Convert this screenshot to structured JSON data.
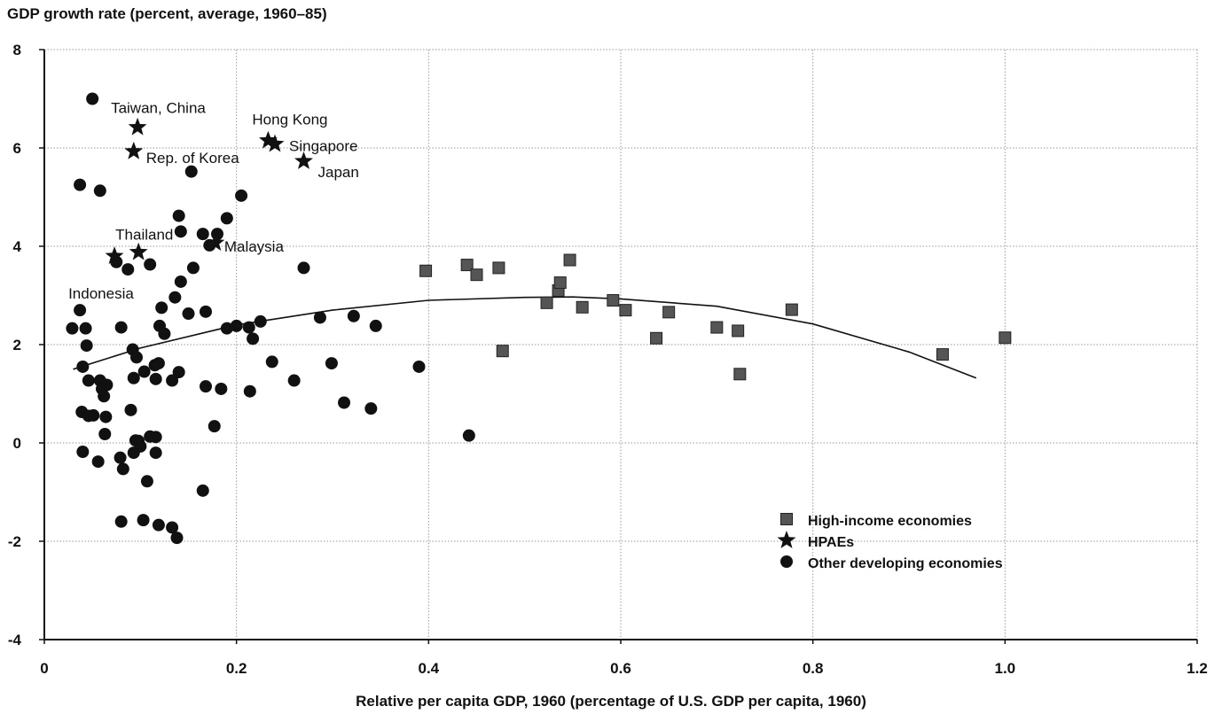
{
  "chart_data": {
    "type": "scatter",
    "title": "",
    "ylabel": "GDP growth rate (percent, average, 1960–85)",
    "xlabel": "Relative per capita GDP, 1960 (percentage of U.S. GDP per capita, 1960)",
    "xlim": [
      0,
      1.2
    ],
    "ylim": [
      -4,
      8
    ],
    "x_ticks": [
      "0",
      "0.2",
      "0.4",
      "0.6",
      "0.8",
      "1.0",
      "1.2"
    ],
    "y_ticks": [
      "-4",
      "-2",
      "0",
      "2",
      "4",
      "6",
      "8"
    ],
    "grid": true,
    "legend_position": "lower-right",
    "legend": [
      {
        "label": "High-income economies",
        "marker": "square"
      },
      {
        "label": "HPAEs",
        "marker": "star"
      },
      {
        "label": "Other developing economies",
        "marker": "circle"
      }
    ],
    "series": [
      {
        "name": "HPAEs",
        "marker": "star",
        "points": [
          {
            "x": 0.097,
            "y": 6.42,
            "label": "Taiwan, China"
          },
          {
            "x": 0.093,
            "y": 5.93,
            "label": "Rep. of Korea"
          },
          {
            "x": 0.233,
            "y": 6.15,
            "label": "Hong Kong"
          },
          {
            "x": 0.24,
            "y": 6.08,
            "label": "Singapore"
          },
          {
            "x": 0.27,
            "y": 5.73,
            "label": "Japan"
          },
          {
            "x": 0.098,
            "y": 3.88,
            "label": "Thailand"
          },
          {
            "x": 0.073,
            "y": 3.8,
            "label": "Indonesia"
          },
          {
            "x": 0.178,
            "y": 4.07,
            "label": "Malaysia"
          }
        ]
      },
      {
        "name": "High-income economies",
        "marker": "square",
        "points": [
          {
            "x": 0.397,
            "y": 3.5
          },
          {
            "x": 0.44,
            "y": 3.62
          },
          {
            "x": 0.45,
            "y": 3.42
          },
          {
            "x": 0.473,
            "y": 3.56
          },
          {
            "x": 0.477,
            "y": 1.87
          },
          {
            "x": 0.523,
            "y": 2.85
          },
          {
            "x": 0.535,
            "y": 3.1
          },
          {
            "x": 0.537,
            "y": 3.26
          },
          {
            "x": 0.547,
            "y": 3.72
          },
          {
            "x": 0.56,
            "y": 2.76
          },
          {
            "x": 0.592,
            "y": 2.9
          },
          {
            "x": 0.605,
            "y": 2.7
          },
          {
            "x": 0.637,
            "y": 2.13
          },
          {
            "x": 0.65,
            "y": 2.66
          },
          {
            "x": 0.7,
            "y": 2.35
          },
          {
            "x": 0.722,
            "y": 2.28
          },
          {
            "x": 0.724,
            "y": 1.4
          },
          {
            "x": 0.778,
            "y": 2.71
          },
          {
            "x": 0.935,
            "y": 1.8
          },
          {
            "x": 1.0,
            "y": 2.14
          }
        ]
      },
      {
        "name": "Other developing economies",
        "marker": "circle",
        "points": [
          {
            "x": 0.05,
            "y": 7.0
          },
          {
            "x": 0.037,
            "y": 5.25
          },
          {
            "x": 0.058,
            "y": 5.13
          },
          {
            "x": 0.153,
            "y": 5.52
          },
          {
            "x": 0.205,
            "y": 5.03
          },
          {
            "x": 0.14,
            "y": 4.62
          },
          {
            "x": 0.19,
            "y": 4.57
          },
          {
            "x": 0.142,
            "y": 4.3
          },
          {
            "x": 0.165,
            "y": 4.25
          },
          {
            "x": 0.18,
            "y": 4.25
          },
          {
            "x": 0.172,
            "y": 4.02
          },
          {
            "x": 0.075,
            "y": 3.68
          },
          {
            "x": 0.087,
            "y": 3.53
          },
          {
            "x": 0.11,
            "y": 3.63
          },
          {
            "x": 0.155,
            "y": 3.56
          },
          {
            "x": 0.27,
            "y": 3.56
          },
          {
            "x": 0.142,
            "y": 3.28
          },
          {
            "x": 0.136,
            "y": 2.96
          },
          {
            "x": 0.122,
            "y": 2.75
          },
          {
            "x": 0.15,
            "y": 2.63
          },
          {
            "x": 0.168,
            "y": 2.67
          },
          {
            "x": 0.037,
            "y": 2.7
          },
          {
            "x": 0.029,
            "y": 2.33
          },
          {
            "x": 0.043,
            "y": 2.33
          },
          {
            "x": 0.08,
            "y": 2.35
          },
          {
            "x": 0.12,
            "y": 2.38
          },
          {
            "x": 0.125,
            "y": 2.22
          },
          {
            "x": 0.19,
            "y": 2.33
          },
          {
            "x": 0.2,
            "y": 2.38
          },
          {
            "x": 0.213,
            "y": 2.35
          },
          {
            "x": 0.225,
            "y": 2.47
          },
          {
            "x": 0.217,
            "y": 2.12
          },
          {
            "x": 0.287,
            "y": 2.55
          },
          {
            "x": 0.322,
            "y": 2.58
          },
          {
            "x": 0.345,
            "y": 2.38
          },
          {
            "x": 0.044,
            "y": 1.98
          },
          {
            "x": 0.092,
            "y": 1.9
          },
          {
            "x": 0.096,
            "y": 1.74
          },
          {
            "x": 0.04,
            "y": 1.55
          },
          {
            "x": 0.115,
            "y": 1.58
          },
          {
            "x": 0.119,
            "y": 1.62
          },
          {
            "x": 0.104,
            "y": 1.45
          },
          {
            "x": 0.093,
            "y": 1.32
          },
          {
            "x": 0.116,
            "y": 1.3
          },
          {
            "x": 0.14,
            "y": 1.44
          },
          {
            "x": 0.133,
            "y": 1.27
          },
          {
            "x": 0.237,
            "y": 1.65
          },
          {
            "x": 0.299,
            "y": 1.62
          },
          {
            "x": 0.39,
            "y": 1.55
          },
          {
            "x": 0.046,
            "y": 1.27
          },
          {
            "x": 0.058,
            "y": 1.27
          },
          {
            "x": 0.065,
            "y": 1.18
          },
          {
            "x": 0.06,
            "y": 1.1
          },
          {
            "x": 0.062,
            "y": 0.95
          },
          {
            "x": 0.168,
            "y": 1.15
          },
          {
            "x": 0.184,
            "y": 1.1
          },
          {
            "x": 0.214,
            "y": 1.05
          },
          {
            "x": 0.26,
            "y": 1.27
          },
          {
            "x": 0.312,
            "y": 0.82
          },
          {
            "x": 0.34,
            "y": 0.7
          },
          {
            "x": 0.039,
            "y": 0.63
          },
          {
            "x": 0.046,
            "y": 0.55
          },
          {
            "x": 0.051,
            "y": 0.56
          },
          {
            "x": 0.064,
            "y": 0.53
          },
          {
            "x": 0.09,
            "y": 0.67
          },
          {
            "x": 0.063,
            "y": 0.18
          },
          {
            "x": 0.177,
            "y": 0.34
          },
          {
            "x": 0.442,
            "y": 0.15
          },
          {
            "x": 0.095,
            "y": 0.05
          },
          {
            "x": 0.098,
            "y": 0.04
          },
          {
            "x": 0.11,
            "y": 0.13
          },
          {
            "x": 0.116,
            "y": 0.12
          },
          {
            "x": 0.1,
            "y": -0.07
          },
          {
            "x": 0.04,
            "y": -0.18
          },
          {
            "x": 0.093,
            "y": -0.2
          },
          {
            "x": 0.116,
            "y": -0.2
          },
          {
            "x": 0.056,
            "y": -0.38
          },
          {
            "x": 0.079,
            "y": -0.3
          },
          {
            "x": 0.082,
            "y": -0.53
          },
          {
            "x": 0.107,
            "y": -0.78
          },
          {
            "x": 0.165,
            "y": -0.97
          },
          {
            "x": 0.08,
            "y": -1.6
          },
          {
            "x": 0.103,
            "y": -1.57
          },
          {
            "x": 0.119,
            "y": -1.67
          },
          {
            "x": 0.133,
            "y": -1.72
          },
          {
            "x": 0.138,
            "y": -1.93
          }
        ]
      }
    ],
    "trend_line": {
      "type": "quadratic",
      "x": [
        0.03,
        0.1,
        0.2,
        0.3,
        0.4,
        0.5,
        0.55,
        0.6,
        0.7,
        0.8,
        0.9,
        0.97
      ],
      "y": [
        1.5,
        1.93,
        2.4,
        2.7,
        2.9,
        2.96,
        2.97,
        2.93,
        2.78,
        2.42,
        1.85,
        1.32
      ]
    }
  }
}
